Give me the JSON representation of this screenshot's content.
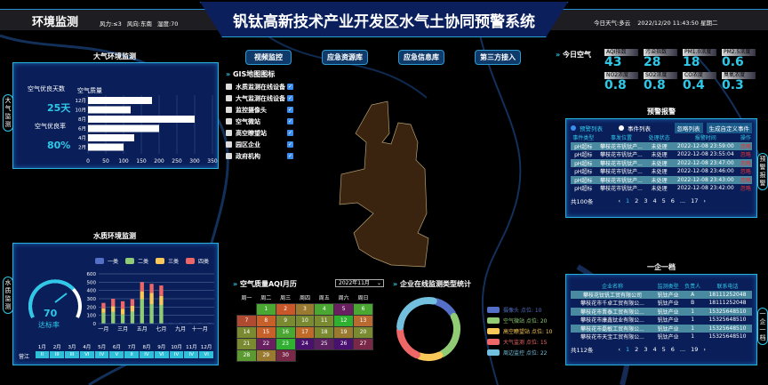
{
  "header": {
    "section": "环境监测",
    "wind_force": "风力:≤3",
    "wind_dir": "风向:东南",
    "humidity": "湿度:70",
    "title": "钒钛高新技术产业开发区水气土协同预警系统",
    "weather": "今日天气:多云",
    "datetime": "2022/12/20 11:43:50 星期二"
  },
  "nav": [
    "视频监控",
    "应急资源库",
    "应急信息库",
    "第三方接入"
  ],
  "gis": {
    "title": "GIS地图图标",
    "items": [
      "水质监测在线设备",
      "大气监测在线设备",
      "监控摄像头",
      "空气微站",
      "高空瞭望站",
      "园区企业",
      "政府机构"
    ]
  },
  "air": {
    "title": "大气环境监测",
    "side": "大气监测",
    "good_days_label": "空气优良天数",
    "good_days": "25天",
    "good_rate_label": "空气优良率",
    "good_rate": "80%"
  },
  "chart_data": [
    {
      "type": "bar",
      "orientation": "horizontal",
      "title": "空气质量",
      "categories": [
        "12月",
        "10月",
        "8月",
        "6月",
        "4月",
        "2月"
      ],
      "values": [
        180,
        120,
        300,
        200,
        130,
        100
      ],
      "xlim": [
        0,
        350
      ],
      "xticks": [
        0,
        50,
        100,
        150,
        200,
        250,
        300,
        350
      ],
      "grid": true,
      "color": "#ffffff"
    },
    {
      "type": "bar",
      "stacked": true,
      "categories": [
        "一月",
        "二月",
        "三月",
        "四月",
        "五月",
        "六月",
        "七月",
        "八月",
        "九月",
        "十月",
        "十一月",
        "十二月"
      ],
      "tick_labels": [
        "一月",
        "三月",
        "五月",
        "七月",
        "九月",
        "十一月"
      ],
      "series": [
        {
          "name": "一类",
          "color": "#5470c6",
          "values": [
            5,
            5,
            5,
            5,
            5,
            5,
            5,
            5,
            5,
            5,
            5,
            5
          ]
        },
        {
          "name": "二类",
          "color": "#91cc75",
          "values": [
            125,
            135,
            105,
            140,
            290,
            230,
            220,
            0,
            0,
            0,
            0,
            0
          ]
        },
        {
          "name": "三类",
          "color": "#fac858",
          "values": [
            55,
            70,
            70,
            70,
            95,
            135,
            110,
            0,
            0,
            0,
            0,
            0
          ]
        },
        {
          "name": "四类",
          "color": "#ee6666",
          "values": [
            65,
            90,
            90,
            80,
            110,
            110,
            125,
            0,
            0,
            0,
            0,
            0
          ]
        }
      ],
      "ylim": [
        0,
        600
      ],
      "yticks": [
        0,
        100,
        200,
        300,
        400,
        500,
        600
      ],
      "legend": "top"
    },
    {
      "type": "pie",
      "donut": true,
      "title": "企业在线监测类型统计",
      "labels": [
        "摄像头 点位: 10",
        "空气微站 点位: 20",
        "高空瞭望站 点位: 10",
        "大气监测 点位: 15",
        "周边监控 点位: 22"
      ],
      "values": [
        10,
        20,
        10,
        15,
        22
      ],
      "colors": [
        "#5470c6",
        "#91cc75",
        "#fac858",
        "#ee6666",
        "#73c0de"
      ],
      "legend": "right"
    }
  ],
  "water": {
    "title": "水质环境监测",
    "side": "水质监测",
    "gauge_value": "70",
    "gauge_label": "达标率",
    "gauge_percent": 70,
    "river": "营江",
    "months": [
      "1月",
      "2月",
      "3月",
      "4月",
      "5月",
      "6月",
      "7月",
      "8月",
      "9月",
      "10月",
      "11月",
      "12月"
    ],
    "grades": [
      "II",
      "III",
      "III",
      "VI",
      "IV",
      "V",
      "II",
      "IV",
      "VI",
      "IV",
      "IV",
      "VI"
    ]
  },
  "calendar": {
    "title": "空气质量AQI月历",
    "month": "2022年11月",
    "weekdays": [
      "周一",
      "周二",
      "周三",
      "周四",
      "周五",
      "周六",
      "周日"
    ],
    "offset": 1,
    "colors": [
      "#4aa832",
      "#c8582a",
      "#9a7a30",
      "#4aa832",
      "#6a2060",
      "#4aa832",
      "#b04a30",
      "#c8602a",
      "#7a8a30",
      "#7a8a30",
      "#7a8a30",
      "#30b030",
      "#b86a30",
      "#7a8a30",
      "#c8602a",
      "#4aa832",
      "#c06a2a",
      "#7a8a30",
      "#9a7a30",
      "#7a8a30",
      "#7a8a30",
      "#6a2060",
      "#30b030",
      "#4a1070",
      "#5a2060",
      "#4a1070",
      "#7a2848",
      "#5a9a30",
      "#9a7a30",
      "#7a2848"
    ]
  },
  "today_air": {
    "title": "今日空气",
    "items": [
      {
        "label": "AQI指数",
        "value": "43"
      },
      {
        "label": "污染指数",
        "value": "28"
      },
      {
        "label": "PM1.0浓度",
        "value": "18"
      },
      {
        "label": "PM2.5浓度",
        "value": "0.6"
      },
      {
        "label": "NO2浓度",
        "value": "0.8"
      },
      {
        "label": "SO2浓度",
        "value": "0.8"
      },
      {
        "label": "CO浓度",
        "value": "0.4"
      },
      {
        "label": "臭氧浓度",
        "value": "0.3"
      }
    ]
  },
  "alerts": {
    "title": "预警报警",
    "side": "预警报警",
    "radio1": "预警列表",
    "radio2": "事件列表",
    "btn_ignore": "忽略列表",
    "btn_create": "生成自定义事件",
    "columns": [
      "事件类型",
      "事发位置",
      "处理状态",
      "报警时间",
      "操作"
    ],
    "rows": [
      [
        "pH超标",
        "攀枝花市钒钛产...",
        "未处理",
        "2022-12-08 23:59:00",
        "忽略"
      ],
      [
        "pH超标",
        "攀枝花市钒钛产...",
        "未处理",
        "2022-12-08 23:55:04",
        "忽略"
      ],
      [
        "pH超标",
        "攀枝花市钒钛产...",
        "未处理",
        "2022-12-08 23:47:00",
        "忽略"
      ],
      [
        "pH超标",
        "攀枝花市钒钛产...",
        "未处理",
        "2022-12-08 23:46:00",
        "忽略"
      ],
      [
        "pH超标",
        "攀枝花市钒钛产...",
        "未处理",
        "2022-12-08 23:43:00",
        "忽略"
      ],
      [
        "pH超标",
        "攀枝花市钒钛产...",
        "未处理",
        "2022-12-08 23:42:00",
        "忽略"
      ]
    ],
    "total": "共100条",
    "pages": [
      "1",
      "2",
      "3",
      "4",
      "5",
      "6",
      "...",
      "17"
    ]
  },
  "enterprise": {
    "title": "一企一档",
    "side": "一企一档",
    "columns": [
      "企业名称",
      "监测类型",
      "负责人",
      "联系电话"
    ],
    "rows": [
      [
        "攀枝花钛钒工贸有限公司",
        "钒钛产业",
        "A",
        "18111252048"
      ],
      [
        "攀枝花市千卓工贸有限公...",
        "钒钛产业",
        "B",
        "18111252048"
      ],
      [
        "攀枝花市晋泰工贸有限公...",
        "钒钛产业",
        "1",
        "15325648510"
      ],
      [
        "攀枝花市康鑫钛业有限公...",
        "钒钛产业",
        "1",
        "15325648510"
      ],
      [
        "攀枝花市磊敏工贸有限公...",
        "钒钛产业",
        "1",
        "15325648510"
      ],
      [
        "攀枝花市天宝工贸有限公...",
        "钒钛产业",
        "1",
        "15325648510"
      ]
    ],
    "total": "共112条",
    "pages": [
      "1",
      "2",
      "3",
      "4",
      "5",
      "6",
      "...",
      "19"
    ]
  }
}
